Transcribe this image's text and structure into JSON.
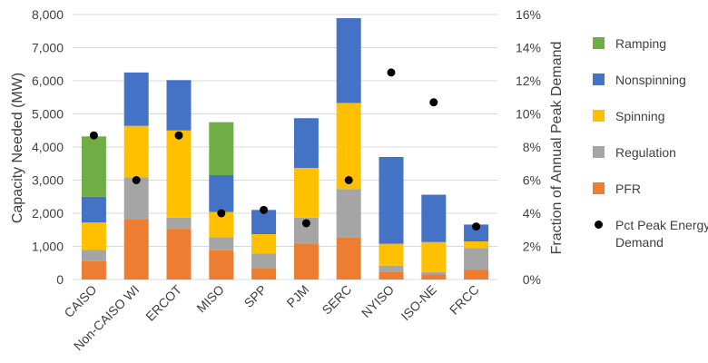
{
  "chart_data": {
    "type": "bar",
    "stacked": true,
    "categories": [
      "CAISO",
      "Non-CAISO WI",
      "ERCOT",
      "MISO",
      "SPP",
      "PJM",
      "SERC",
      "NYISO",
      "ISO-NE",
      "FRCC"
    ],
    "series": [
      {
        "name": "PFR",
        "color": "#ed7d31",
        "values": [
          550,
          1830,
          1530,
          880,
          340,
          1080,
          1270,
          220,
          150,
          300
        ]
      },
      {
        "name": "Regulation",
        "color": "#a5a5a5",
        "values": [
          350,
          1250,
          340,
          400,
          440,
          790,
          1460,
          200,
          70,
          650
        ]
      },
      {
        "name": "Spinning",
        "color": "#ffc000",
        "values": [
          820,
          1560,
          2630,
          760,
          590,
          1500,
          2600,
          660,
          910,
          200
        ]
      },
      {
        "name": "Nonspinning",
        "color": "#4472c4",
        "values": [
          780,
          1610,
          1520,
          1110,
          730,
          1500,
          2560,
          2620,
          1430,
          510
        ]
      },
      {
        "name": "Ramping",
        "color": "#70ad47",
        "values": [
          1820,
          0,
          0,
          1600,
          0,
          0,
          0,
          0,
          0,
          0
        ]
      }
    ],
    "scatter": {
      "name": "Pct Peak Energy Demand",
      "color": "#000000",
      "values": [
        0.087,
        0.06,
        0.087,
        0.04,
        0.042,
        0.034,
        0.06,
        0.125,
        0.107,
        0.032
      ]
    },
    "ylabel": "Capacity Needed (MW)",
    "y2label": "Fraction of Annual Peak Demand",
    "ylim": [
      0,
      8000
    ],
    "yticks": [
      0,
      1000,
      2000,
      3000,
      4000,
      5000,
      6000,
      7000,
      8000
    ],
    "ytick_labels": [
      "0",
      "1,000",
      "2,000",
      "3,000",
      "4,000",
      "5,000",
      "6,000",
      "7,000",
      "8,000"
    ],
    "y2lim": [
      0,
      0.16
    ],
    "y2ticks": [
      0,
      0.02,
      0.04,
      0.06,
      0.08,
      0.1,
      0.12,
      0.14,
      0.16
    ],
    "y2tick_labels": [
      "0%",
      "2%",
      "4%",
      "6%",
      "8%",
      "10%",
      "12%",
      "14%",
      "16%"
    ],
    "legend_order": [
      "Ramping",
      "Nonspinning",
      "Spinning",
      "Regulation",
      "PFR",
      "Pct Peak Energy Demand"
    ],
    "legend_labels": {
      "Ramping": [
        "Ramping"
      ],
      "Nonspinning": [
        "Nonspinning"
      ],
      "Spinning": [
        "Spinning"
      ],
      "Regulation": [
        "Regulation"
      ],
      "PFR": [
        "PFR"
      ],
      "Pct Peak Energy Demand": [
        "Pct Peak Energy",
        "Demand"
      ]
    },
    "legend_position": "right",
    "grid": true
  }
}
